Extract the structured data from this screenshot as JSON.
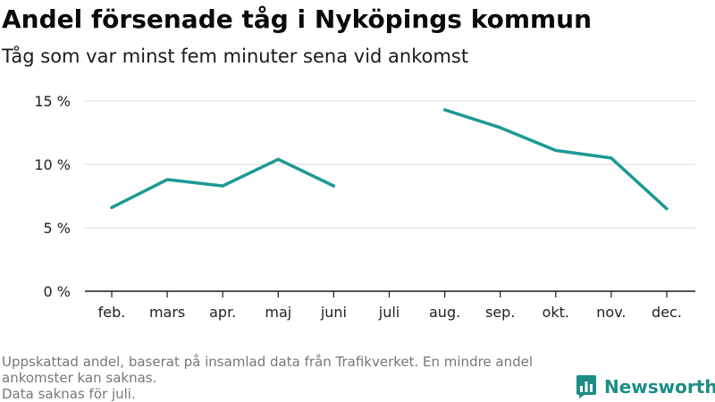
{
  "header": {
    "title": "Andel försenade tåg i Nyköpings kommun",
    "subtitle": "Tåg som var minst fem minuter sena vid ankomst"
  },
  "chart_data": {
    "type": "line",
    "title": "Andel försenade tåg i Nyköpings kommun",
    "subtitle": "Tåg som var minst fem minuter sena vid ankomst",
    "xlabel": "",
    "ylabel": "",
    "categories": [
      "feb.",
      "mars",
      "apr.",
      "maj",
      "juni",
      "juli",
      "aug.",
      "sep.",
      "okt.",
      "nov.",
      "dec."
    ],
    "series": [
      {
        "color": "#1c9a93",
        "values": [
          6.6,
          8.8,
          8.3,
          10.4,
          8.3,
          null,
          14.3,
          12.9,
          11.1,
          10.5,
          6.5
        ]
      }
    ],
    "yticks": [
      0,
      5,
      10,
      15
    ],
    "ytick_labels": [
      "0 %",
      "5 %",
      "10 %",
      "15 %"
    ],
    "ylim": [
      0,
      15
    ],
    "grid": true,
    "legend": "none"
  },
  "footnote": {
    "line1": "Uppskattad andel, baserat på insamlad data från Trafikverket. En mindre andel",
    "line2": "ankomster kan saknas.",
    "line3": "Data saknas för juli."
  },
  "brand": {
    "name": "Newsworthy",
    "icon": "bar-chart-speech-bubble-icon",
    "color": "#1c8e86"
  }
}
